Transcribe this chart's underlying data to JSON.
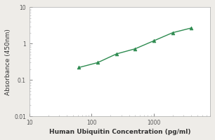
{
  "x_data": [
    62.5,
    125,
    250,
    500,
    1000,
    2000,
    4000
  ],
  "y_data": [
    0.22,
    0.3,
    0.52,
    0.72,
    1.2,
    2.0,
    2.7
  ],
  "line_color": "#2e8b50",
  "marker_color": "#2e8b50",
  "marker_style": "^",
  "marker_size": 3.5,
  "line_width": 1.0,
  "xlabel": "Human Ubiquitin Concentration (pg/ml)",
  "ylabel": "Absorbance (450nm)",
  "xlim": [
    10,
    8000
  ],
  "ylim": [
    0.01,
    10
  ],
  "xlabel_fontsize": 6.5,
  "ylabel_fontsize": 6.5,
  "tick_fontsize": 5.5,
  "background_color": "#eeece8",
  "plot_bg_color": "#ffffff",
  "spine_color": "#aaaaaa"
}
